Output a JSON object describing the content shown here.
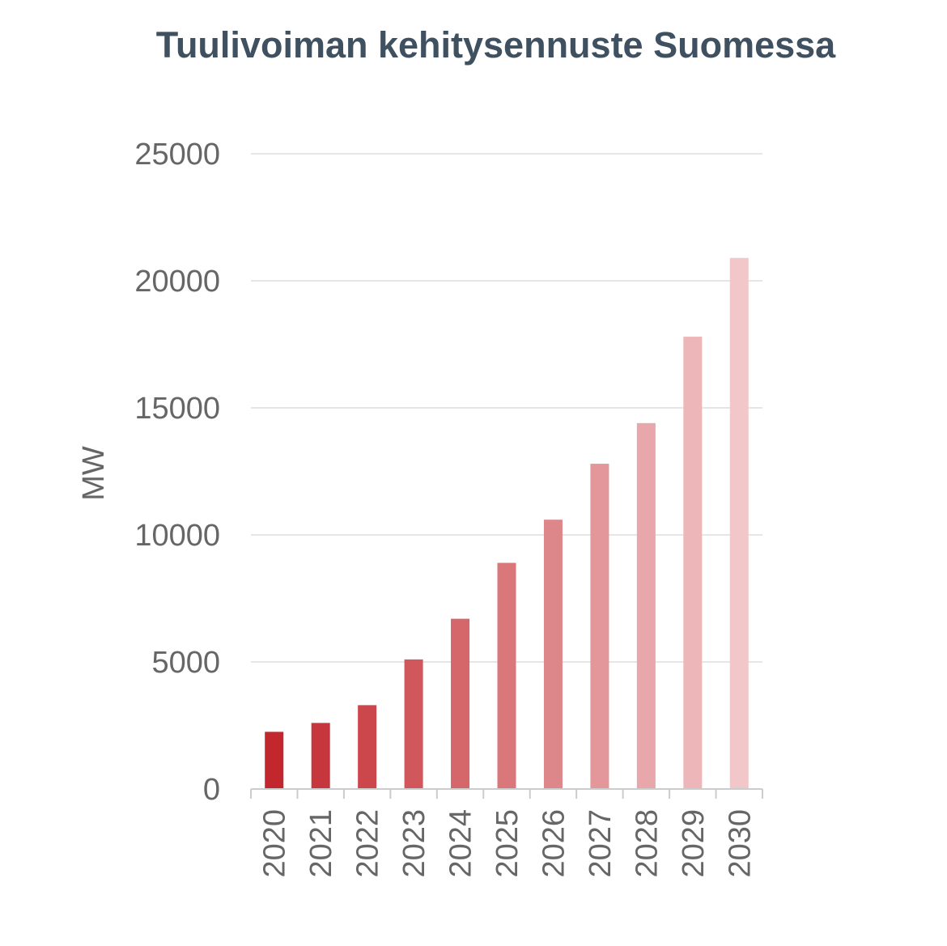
{
  "chart_data": {
    "type": "bar",
    "title": "Tuulivoiman kehitysennuste Suomessa",
    "xlabel": "",
    "ylabel": "MW",
    "categories": [
      "2020",
      "2021",
      "2022",
      "2023",
      "2024",
      "2025",
      "2026",
      "2027",
      "2028",
      "2029",
      "2030"
    ],
    "values": [
      2250,
      2600,
      3300,
      5100,
      6700,
      8900,
      10600,
      12800,
      14400,
      17800,
      20900
    ],
    "ylim": [
      0,
      25000
    ],
    "yticks": [
      0,
      5000,
      10000,
      15000,
      20000,
      25000
    ],
    "grid": true,
    "legend": "none",
    "bar_color_start": "#c1272d",
    "bar_color_end": "#f2c7c9",
    "gridline_color": "#e6e6e6",
    "text_color": "#666666",
    "title_color": "#3f5160"
  }
}
